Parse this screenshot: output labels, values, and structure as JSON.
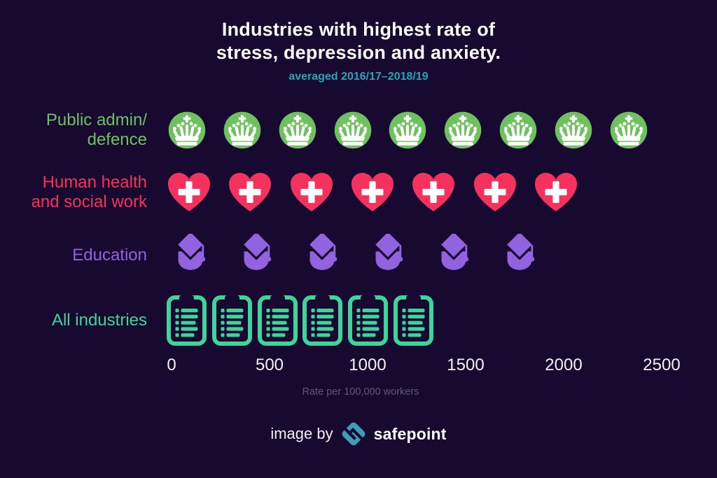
{
  "title": {
    "line1": "Industries with highest rate of",
    "line2": "stress, depression and anxiety."
  },
  "subtitle": "averaged 2016/17–2018/19",
  "footer": {
    "prefix": "image by",
    "brand": "safepoint",
    "logo_icon": "safepoint-diamond-logo"
  },
  "colors": {
    "background": "#17092f",
    "title_text": "#ffffff",
    "subtitle_teal": "#29a5b5",
    "axis_text": "#f4f2f8",
    "caption_gray": "#5f5878",
    "public_admin_green": "#6ec15e",
    "health_pink": "#f5325e",
    "education_purple": "#9263de",
    "all_industries_mint": "#3ed49c",
    "logo_teal": "#3c9fb3"
  },
  "chart_data": {
    "type": "bar",
    "subtype": "pictogram",
    "title": "Industries with highest rate of stress, depression and anxiety.",
    "subtitle": "averaged 2016/17–2018/19",
    "xlabel": "Rate per 100,000 workers",
    "ylabel": "",
    "xlim": [
      0,
      2500
    ],
    "x_ticks": [
      0,
      500,
      1000,
      1500,
      2000,
      2500
    ],
    "grid": false,
    "legend": "none",
    "categories": [
      "Public admin/defence",
      "Human health and social work",
      "Education",
      "All industries"
    ],
    "values": [
      2460,
      2100,
      1920,
      1360
    ],
    "series": [
      {
        "label_lines": [
          "Public admin/",
          "defence"
        ],
        "value": 2460,
        "icon_count": 9,
        "icon": "crown",
        "icon_name": "crown-icon",
        "color": "#6ec15e"
      },
      {
        "label_lines": [
          "Human health",
          "and social work"
        ],
        "value": 2100,
        "icon_count": 7,
        "icon": "heart",
        "icon_name": "medical-heart-icon",
        "color": "#f5325e"
      },
      {
        "label_lines": [
          "Education"
        ],
        "value": 1920,
        "icon_count": 6,
        "icon": "cap",
        "icon_name": "graduation-cap-icon",
        "color": "#9263de"
      },
      {
        "label_lines": [
          "All industries"
        ],
        "value": 1360,
        "icon_count": 6,
        "icon": "clipboard",
        "icon_name": "clipboard-icon",
        "color": "#3ed49c"
      }
    ]
  }
}
